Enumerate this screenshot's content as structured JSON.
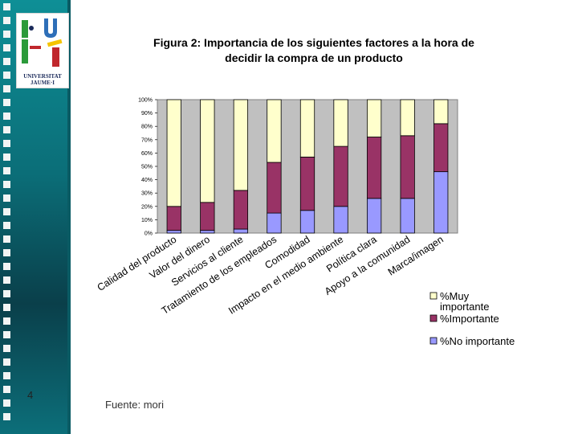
{
  "slide": {
    "page_number": "4",
    "source": "Fuente: mori",
    "logo": {
      "name": "universitat-jaume-i-logo",
      "line1": "UNIVERSITAT",
      "line2": "JAUME·I"
    }
  },
  "chart_data": {
    "type": "bar",
    "stacked": true,
    "normalized": true,
    "title_line1": "Figura 2: Importancia de los siguientes factores a la hora de",
    "title_line2": "decidir la compra de un producto",
    "categories": [
      "Calidad del producto",
      "Valor del dinero",
      "Servicios al cliente",
      "Tratamiento de los empleados",
      "Comodidad",
      "Impacto en el medio ambiente",
      "Política clara",
      "Apoyo a la comunidad",
      "Marca/imagen"
    ],
    "series": [
      {
        "name": "%No importante",
        "color": "#9999ff",
        "values": [
          2,
          2,
          3,
          15,
          17,
          20,
          26,
          26,
          46
        ]
      },
      {
        "name": "%Importante",
        "color": "#993366",
        "values": [
          18,
          21,
          29,
          38,
          40,
          45,
          46,
          47,
          36
        ]
      },
      {
        "name": "%Muy importante",
        "color": "#ffffcc",
        "values": [
          80,
          77,
          68,
          47,
          43,
          35,
          28,
          27,
          18
        ]
      }
    ],
    "legend_entries": [
      {
        "label_lines": [
          "%Muy",
          "importante"
        ],
        "color": "#ffffcc"
      },
      {
        "label_lines": [
          "%Importante"
        ],
        "color": "#993366"
      },
      {
        "label_lines": [
          "%No importante"
        ],
        "color": "#9999ff"
      }
    ],
    "ylim": [
      0,
      100
    ],
    "yticks": [
      "0%",
      "10%",
      "20%",
      "30%",
      "40%",
      "50%",
      "60%",
      "70%",
      "80%",
      "90%",
      "100%"
    ],
    "legend_position": "bottom-right",
    "grid": false,
    "plot_background": "#c0c0c0"
  }
}
